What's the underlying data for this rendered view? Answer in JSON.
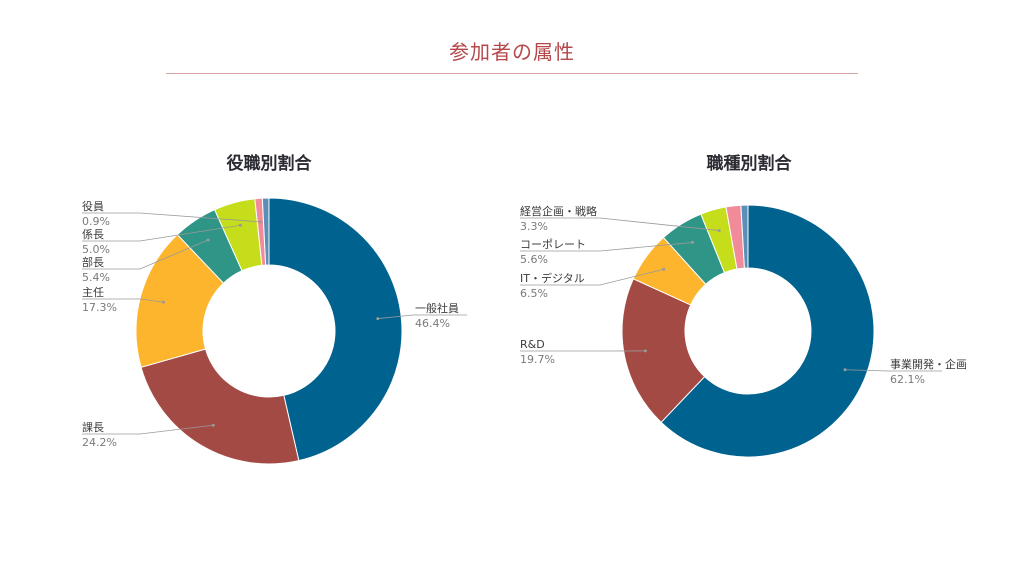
{
  "page": {
    "title": "参加者の属性"
  },
  "chart_data": [
    {
      "type": "pie",
      "variant": "donut",
      "title": "役職別割合",
      "slices": [
        {
          "label": "一般社員",
          "value": 46.4,
          "pct_text": "46.4%",
          "color": "#00628f"
        },
        {
          "label": "課長",
          "value": 24.2,
          "pct_text": "24.2%",
          "color": "#a44a44"
        },
        {
          "label": "主任",
          "value": 17.3,
          "pct_text": "17.3%",
          "color": "#fcb52c"
        },
        {
          "label": "部長",
          "value": 5.4,
          "pct_text": "5.4%",
          "color": "#2f9587"
        },
        {
          "label": "係長",
          "value": 5.0,
          "pct_text": "5.0%",
          "color": "#c6dd1b"
        },
        {
          "label": "役員",
          "value": 0.9,
          "pct_text": "0.9%",
          "color": "#f28b99"
        },
        {
          "label": "",
          "value": 0.8,
          "pct_text": "",
          "color": "#5b8fb8"
        }
      ],
      "legend": "none (callout labels)"
    },
    {
      "type": "pie",
      "variant": "donut",
      "title": "職種別割合",
      "slices": [
        {
          "label": "事業開発・企画",
          "value": 62.1,
          "pct_text": "62.1%",
          "color": "#00628f"
        },
        {
          "label": "R&D",
          "value": 19.7,
          "pct_text": "19.7%",
          "color": "#a44a44"
        },
        {
          "label": "IT・デジタル",
          "value": 6.5,
          "pct_text": "6.5%",
          "color": "#fcb52c"
        },
        {
          "label": "コーポレート",
          "value": 5.6,
          "pct_text": "5.6%",
          "color": "#2f9587"
        },
        {
          "label": "経営企画・戦略",
          "value": 3.3,
          "pct_text": "3.3%",
          "color": "#c6dd1b"
        },
        {
          "label": "",
          "value": 1.9,
          "pct_text": "",
          "color": "#f28b99"
        },
        {
          "label": "",
          "value": 0.9,
          "pct_text": "",
          "color": "#5b8fb8"
        }
      ],
      "legend": "none (callout labels)"
    }
  ]
}
